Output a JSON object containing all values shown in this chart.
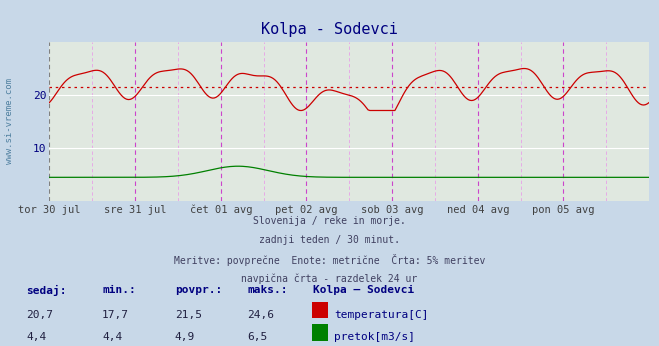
{
  "title": "Kolpa - Sodevci",
  "title_color": "#000080",
  "bg_color": "#c8d8e8",
  "plot_bg_color": "#e0e8e0",
  "grid_color": "#ffffff",
  "xlabel_color": "#404040",
  "ylabel_color": "#000080",
  "ylabel_text": "www.si-vreme.com",
  "ylim": [
    0,
    30
  ],
  "yticks": [
    10,
    20
  ],
  "avg_line_value": 21.5,
  "avg_line_color": "#cc0000",
  "vline_color_major": "#cc44cc",
  "vline_color_minor": "#e8a0e8",
  "vline_color_first": "#808080",
  "temp_color": "#cc0000",
  "flow_color": "#008000",
  "x_labels": [
    "tor 30 jul",
    "sre 31 jul",
    "čet 01 avg",
    "pet 02 avg",
    "sob 03 avg",
    "ned 04 avg",
    "pon 05 avg"
  ],
  "info_lines": [
    "Slovenija / reke in morje.",
    "zadnji teden / 30 minut.",
    "Meritve: povprečne  Enote: metrične  Črta: 5% meritev",
    "navpična črta - razdelek 24 ur"
  ],
  "stats_label_color": "#000080",
  "legend_title": "Kolpa – Sodevci",
  "legend_items": [
    {
      "label": "temperatura[C]",
      "color": "#cc0000"
    },
    {
      "label": "pretok[m3/s]",
      "color": "#008000"
    }
  ],
  "sedaj": [
    "20,7",
    "4,4"
  ],
  "min_val": [
    "17,7",
    "4,4"
  ],
  "povpr": [
    "21,5",
    "4,9"
  ],
  "maks": [
    "24,6",
    "6,5"
  ]
}
